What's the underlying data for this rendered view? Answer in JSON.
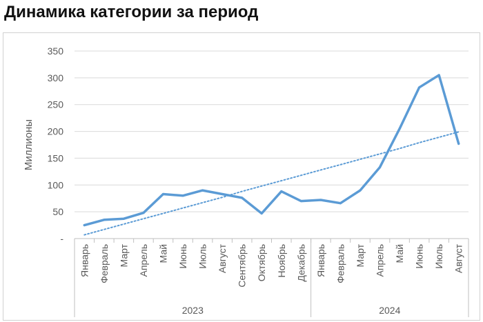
{
  "page": {
    "title": "Динамика категории за период"
  },
  "chart_data": {
    "type": "line",
    "title": "Динамика категории за период",
    "xlabel": "",
    "ylabel": "Миллионы",
    "ylim": [
      0,
      350
    ],
    "yticks": [
      0,
      50,
      100,
      150,
      200,
      250,
      300,
      350
    ],
    "ytick_labels": [
      "-",
      "50",
      "100",
      "150",
      "200",
      "250",
      "300",
      "350"
    ],
    "grid": true,
    "legend": "none",
    "categories": [
      "Январь",
      "Февраль",
      "Март",
      "Апрель",
      "Май",
      "Июнь",
      "Июль",
      "Август",
      "Сентябрь",
      "Октябрь",
      "Ноябрь",
      "Декабрь",
      "Январь",
      "Февраль",
      "Март",
      "Апрель",
      "Май",
      "Июнь",
      "Июль",
      "Август"
    ],
    "groups": [
      {
        "label": "2023",
        "count": 12
      },
      {
        "label": "2024",
        "count": 8
      }
    ],
    "series": [
      {
        "values": [
          25,
          35,
          37,
          48,
          83,
          80,
          90,
          83,
          76,
          47,
          88,
          70,
          72,
          66,
          90,
          133,
          205,
          282,
          305,
          177
        ],
        "color": "#5b9bd5",
        "style": "solid"
      },
      {
        "values": [
          7,
          17,
          27,
          37,
          47,
          57,
          67,
          77,
          88,
          98,
          108,
          118,
          128,
          138,
          148,
          158,
          168,
          179,
          189,
          199
        ],
        "color": "#5b9bd5",
        "style": "dotted",
        "role": "trendline"
      }
    ],
    "colors": {
      "grid": "#d9d9d9",
      "axis": "#bfbfbf",
      "text": "#595959"
    }
  }
}
